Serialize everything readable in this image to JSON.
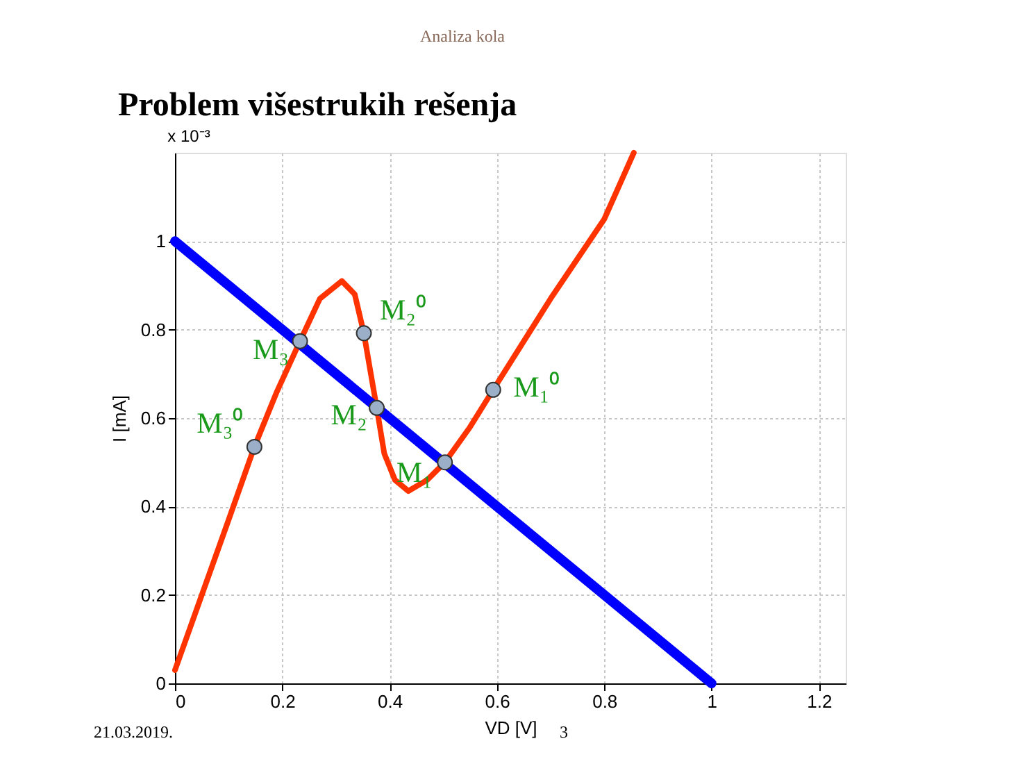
{
  "chart_data": {
    "type": "line",
    "title": "Problem višestrukih rešenja",
    "xlabel": "VD [V]",
    "ylabel": "I [mA]",
    "xlim": [
      0,
      1.25
    ],
    "xticks": [
      0,
      0.2,
      0.4,
      0.6,
      0.8,
      1,
      1.2
    ],
    "ylim": [
      0,
      1.2
    ],
    "yticks": [
      0,
      0.2,
      0.4,
      0.6,
      0.8,
      1
    ],
    "grid": true,
    "series": [
      {
        "color": "#ff3300",
        "x": [
          0,
          0.05,
          0.1,
          0.148,
          0.19,
          0.233,
          0.27,
          0.311,
          0.335,
          0.352,
          0.365,
          0.376,
          0.39,
          0.41,
          0.435,
          0.47,
          0.503,
          0.55,
          0.593,
          0.7,
          0.8,
          0.855
        ],
        "values": [
          0.03,
          0.2,
          0.37,
          0.535,
          0.66,
          0.774,
          0.87,
          0.91,
          0.88,
          0.792,
          0.7,
          0.623,
          0.52,
          0.46,
          0.435,
          0.46,
          0.5,
          0.58,
          0.664,
          0.87,
          1.05,
          1.2
        ]
      },
      {
        "color": "#0000ff",
        "x": [
          0,
          1
        ],
        "values": [
          1,
          0
        ]
      },
      {
        "type": "scatter",
        "color": "#9bb0c8",
        "marker": "circle",
        "x": [
          0.148,
          0.233,
          0.352,
          0.376,
          0.503,
          0.593
        ],
        "values": [
          0.535,
          0.774,
          0.792,
          0.623,
          0.5,
          0.664
        ]
      }
    ],
    "annotations": [
      {
        "text": "M₃⁰",
        "x": 0.148,
        "y": 0.535
      },
      {
        "text": "M₃",
        "x": 0.233,
        "y": 0.774
      },
      {
        "text": "M₂⁰",
        "x": 0.352,
        "y": 0.792
      },
      {
        "text": "M₂",
        "x": 0.376,
        "y": 0.623
      },
      {
        "text": "M₁",
        "x": 0.503,
        "y": 0.5
      },
      {
        "text": "M₁⁰",
        "x": 0.593,
        "y": 0.664
      },
      "Analiza kola",
      "x 10⁻³",
      "21.03.2019.",
      "3"
    ]
  }
}
